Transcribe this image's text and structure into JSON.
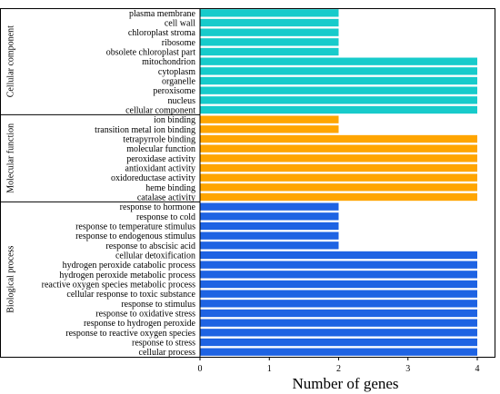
{
  "chart_data": {
    "type": "bar",
    "orientation": "horizontal",
    "xlabel": "Number of genes",
    "ylabel": "",
    "xlim": [
      0,
      4
    ],
    "xticks": [
      "0",
      "1",
      "2",
      "3",
      "4"
    ],
    "grid": false,
    "legend": "none",
    "groups": [
      {
        "name": "Cellular component",
        "color": "#17CBCB",
        "categories": [
          "plasma membrane",
          "cell wall",
          "chloroplast stroma",
          "ribosome",
          "obsolete chloroplast part",
          "mitochondrion",
          "cytoplasm",
          "organelle",
          "peroxisome",
          "nucleus",
          "cellular component"
        ],
        "values": [
          2,
          2,
          2,
          2,
          2,
          4,
          4,
          4,
          4,
          4,
          4
        ]
      },
      {
        "name": "Molecular function",
        "color": "#FFA500",
        "categories": [
          "ion binding",
          "transition metal ion binding",
          "tetrapyrrole binding",
          "molecular function",
          "peroxidase activity",
          "antioxidant activity",
          "oxidoreductase activity",
          "heme binding",
          "catalase activity"
        ],
        "values": [
          2,
          2,
          4,
          4,
          4,
          4,
          4,
          4,
          4
        ]
      },
      {
        "name": "Biological process",
        "color": "#1E63E3",
        "categories": [
          "response to hormone",
          "response to cold",
          "response to temperature stimulus",
          "response to endogenous stimulus",
          "response to abscisic acid",
          "cellular detoxification",
          "hydrogen peroxide catabolic process",
          "hydrogen peroxide metabolic process",
          "reactive oxygen species metabolic process",
          "cellular response to toxic substance",
          "response to stimulus",
          "response to oxidative stress",
          "response to hydrogen peroxide",
          "response to reactive oxygen species",
          "response to stress",
          "cellular process"
        ],
        "values": [
          2,
          2,
          2,
          2,
          2,
          4,
          4,
          4,
          4,
          4,
          4,
          4,
          4,
          4,
          4,
          4
        ]
      }
    ]
  }
}
